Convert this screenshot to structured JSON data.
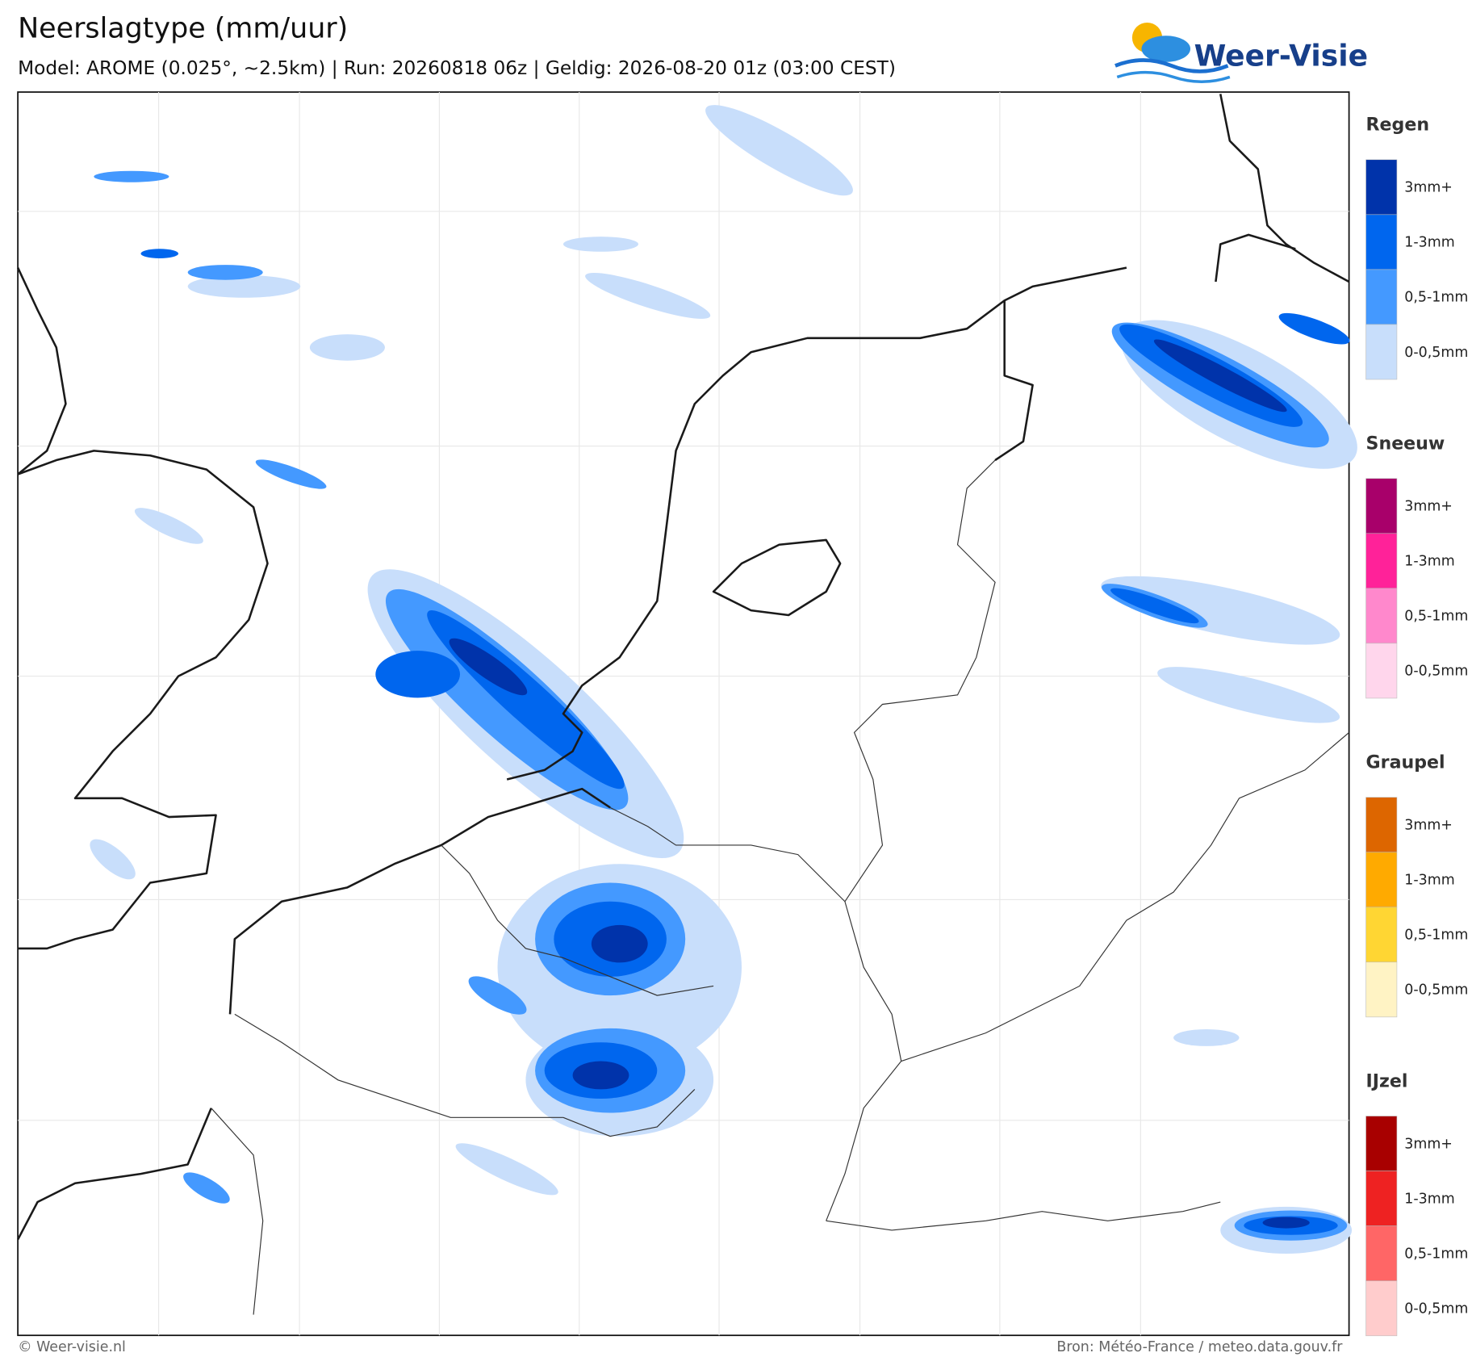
{
  "header": {
    "title": "Neerslagtype (mm/uur)",
    "subtitle": "Model: AROME (0.025°, ~2.5km)  |  Run: 20260818 06z  |  Geldig: 2026-08-20 01z (03:00 CEST)",
    "logo": "Weer-Visie"
  },
  "legend": [
    {
      "title": "Regen",
      "items": [
        {
          "label": "3mm+",
          "color": "#0033aa"
        },
        {
          "label": "1-3mm",
          "color": "#0066ee"
        },
        {
          "label": "0,5-1mm",
          "color": "#4499ff"
        },
        {
          "label": "0-0,5mm",
          "color": "#c8defb"
        }
      ]
    },
    {
      "title": "Sneeuw",
      "items": [
        {
          "label": "3mm+",
          "color": "#a8006a"
        },
        {
          "label": "1-3mm",
          "color": "#ff2299"
        },
        {
          "label": "0,5-1mm",
          "color": "#ff88cc"
        },
        {
          "label": "0-0,5mm",
          "color": "#ffd6ec"
        }
      ]
    },
    {
      "title": "Graupel",
      "items": [
        {
          "label": "3mm+",
          "color": "#dd6600"
        },
        {
          "label": "1-3mm",
          "color": "#ffaa00"
        },
        {
          "label": "0,5-1mm",
          "color": "#ffd633"
        },
        {
          "label": "0-0,5mm",
          "color": "#fff3c4"
        }
      ]
    },
    {
      "title": "IJzel",
      "items": [
        {
          "label": "3mm+",
          "color": "#a80000"
        },
        {
          "label": "1-3mm",
          "color": "#ee2222"
        },
        {
          "label": "0,5-1mm",
          "color": "#ff6666"
        },
        {
          "label": "0-0,5mm",
          "color": "#ffcccc"
        }
      ]
    }
  ],
  "footer": {
    "copyright": "© Weer-visie.nl",
    "source": "Bron: Météo-France / meteo.data.gouv.fr"
  }
}
